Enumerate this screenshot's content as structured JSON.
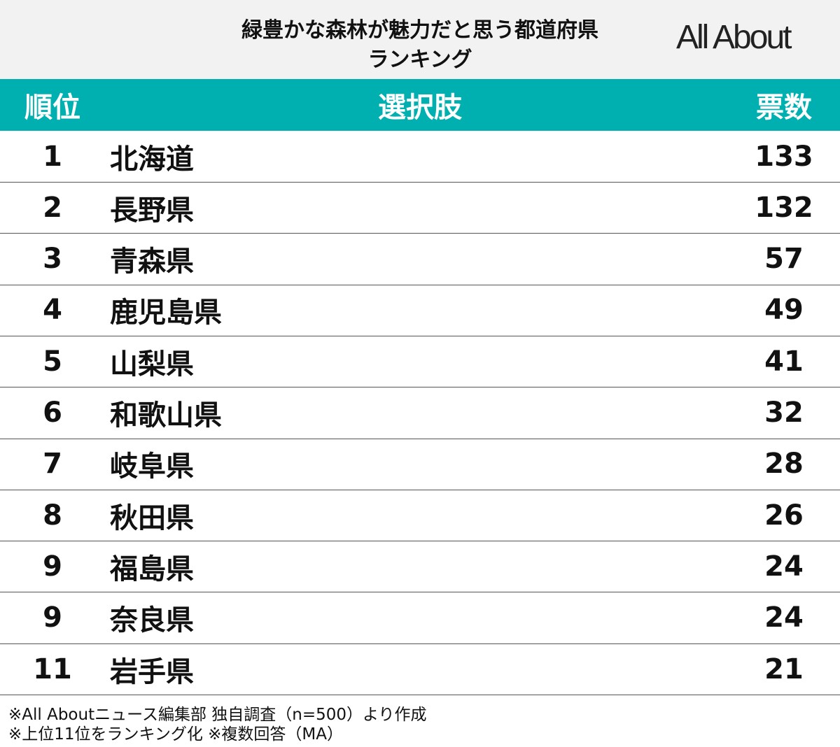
{
  "header": {
    "title": [
      "緑豊かな森林が魅力だと思う都道府県",
      "ランキング"
    ],
    "logo": "All About"
  },
  "table": {
    "columns": [
      "順位",
      "選択肢",
      "票数"
    ],
    "rows": [
      [
        1,
        "北海道",
        133
      ],
      [
        2,
        "長野県",
        132
      ],
      [
        3,
        "青森県",
        57
      ],
      [
        4,
        "鹿児島県",
        49
      ],
      [
        5,
        "山梨県",
        41
      ],
      [
        6,
        "和歌山県",
        32
      ],
      [
        7,
        "岐阜県",
        28
      ],
      [
        8,
        "秋田県",
        26
      ],
      [
        9,
        "福島県",
        24
      ],
      [
        9,
        "奈良県",
        24
      ],
      [
        11,
        "岩手県",
        21
      ]
    ]
  },
  "footnotes": [
    "※All Aboutニュース編集部 独自調査（n=500）より作成",
    "※上位11位をランキング化 ※複数回答（MA）"
  ]
}
